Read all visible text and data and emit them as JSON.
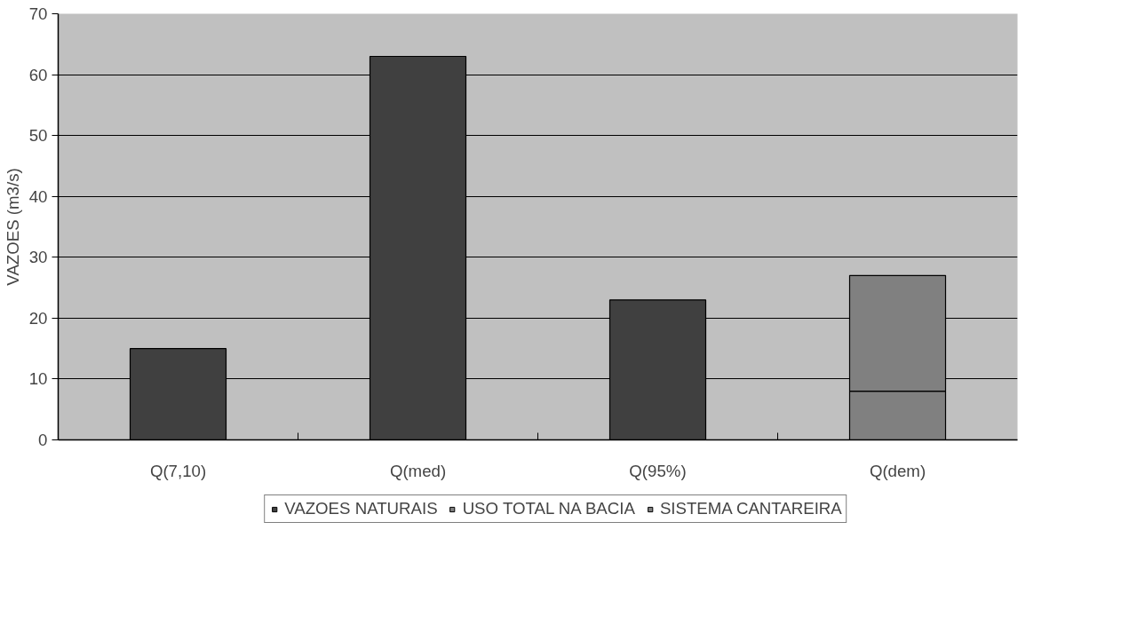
{
  "chart_data": {
    "type": "bar",
    "stacked": true,
    "ylabel": "VAZOES (m3/s)",
    "categories": [
      "Q(7,10)",
      "Q(med)",
      "Q(95%)",
      "Q(dem)"
    ],
    "series": [
      {
        "name": "VAZOES NATURAIS",
        "color": "#404040",
        "values": [
          15,
          63,
          23,
          null
        ]
      },
      {
        "name": "USO TOTAL NA BACIA",
        "color": "#808080",
        "values": [
          null,
          null,
          null,
          8
        ]
      },
      {
        "name": "SISTEMA CANTAREIRA",
        "color": "#808080",
        "values": [
          null,
          null,
          null,
          19
        ]
      }
    ],
    "ylim": [
      0,
      70
    ],
    "yticks": [
      0,
      10,
      20,
      30,
      40,
      50,
      60,
      70
    ],
    "grid": "y",
    "legend": "bottom"
  }
}
